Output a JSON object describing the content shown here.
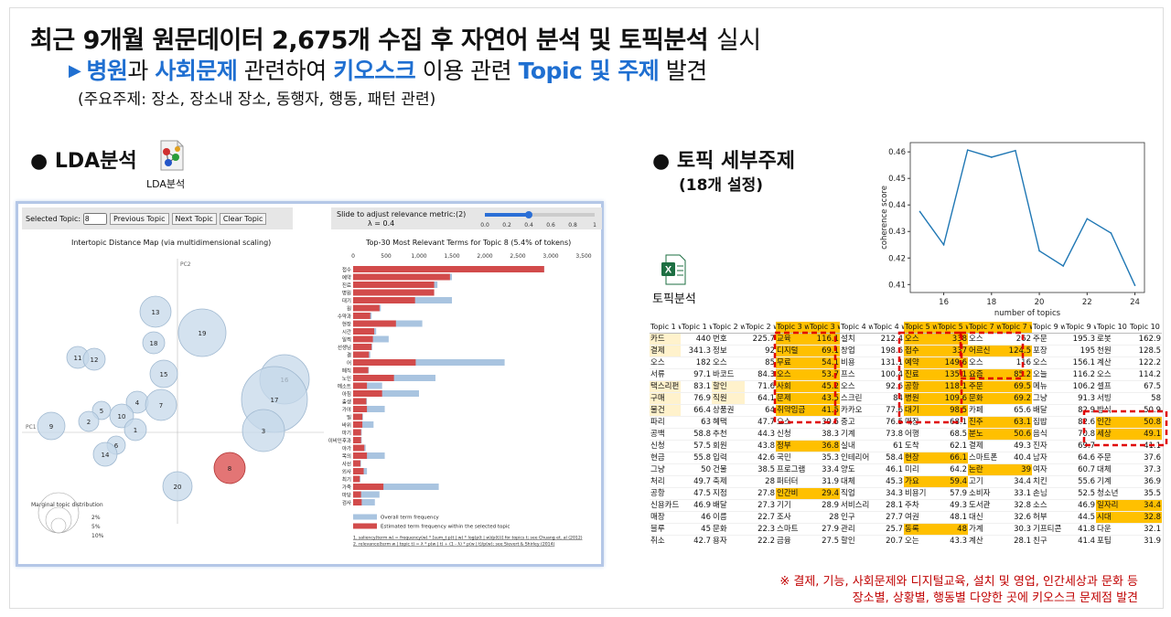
{
  "headline": {
    "main": "최근 9개월 원문데이터 2,675개 수집 후 자연어 분석 및 토픽분석",
    "tail": "실시"
  },
  "subline": {
    "bullet": "▶",
    "part1": "병원",
    "part2": "과",
    "part3": "사회문제",
    "part4": "관련하여",
    "part5": "키오스크",
    "part6": "이용 관련",
    "part7": "Topic 및 주제",
    "part8": "발견"
  },
  "subline2": "(주요주제: 장소, 장소내 장소, 동행자, 행동, 패턴 관련)",
  "lda": {
    "title": "● LDA분석",
    "icon_label": "LDA분석",
    "selected_topic_label": "Selected Topic:",
    "selected_topic_value": "8",
    "prev": "Previous Topic",
    "next": "Next Topic",
    "clear": "Clear Topic",
    "slider_label": "Slide to adjust relevance metric:(2)",
    "lambda": "λ = 0.4",
    "slider_ticks": [
      "0.0",
      "0.2",
      "0.4",
      "0.6",
      "0.8",
      "1"
    ],
    "slider_value": 0.4,
    "map_title": "Intertopic Distance Map (via multidimensional scaling)",
    "pc1": "PC1",
    "pc2": "PC2",
    "marginal_title": "Marginal topic distribution",
    "marginal_ticks": [
      "2%",
      "5%",
      "10%"
    ],
    "bar_title": "Top-30 Most Relevant Terms for Topic 8 (5.4% of tokens)",
    "bar_axis": [
      "0",
      "500",
      "1,000",
      "1,500",
      "2,000",
      "2,500",
      "3,000",
      "3,500"
    ],
    "legend_overall": "Overall term frequency",
    "legend_estimated": "Estimated term frequency within the selected topic",
    "footnote1": "1. saliency(term w) = frequency(w) * [sum_t p(t | w) * log(p(t | w)/p(t))] for topics t; see Chuang et. al (2012)",
    "footnote2": "2. relevance(term w | topic t) = λ * p(w | t) + (1 - λ) * p(w | t)/p(w); see Sievert & Shirley (2014)",
    "topics": [
      {
        "id": "13",
        "x": 146,
        "y": 106,
        "r": 17
      },
      {
        "id": "19",
        "x": 197,
        "y": 129,
        "r": 26
      },
      {
        "id": "18",
        "x": 144,
        "y": 140,
        "r": 12
      },
      {
        "id": "11",
        "x": 61,
        "y": 156,
        "r": 12
      },
      {
        "id": "12",
        "x": 79,
        "y": 158,
        "r": 12
      },
      {
        "id": "15",
        "x": 155,
        "y": 174,
        "r": 15
      },
      {
        "id": "16",
        "x": 287,
        "y": 180,
        "r": 27
      },
      {
        "id": "17",
        "x": 276,
        "y": 202,
        "r": 36
      },
      {
        "id": "4",
        "x": 126,
        "y": 205,
        "r": 12
      },
      {
        "id": "7",
        "x": 152,
        "y": 208,
        "r": 17
      },
      {
        "id": "5",
        "x": 87,
        "y": 214,
        "r": 10
      },
      {
        "id": "2",
        "x": 73,
        "y": 226,
        "r": 11
      },
      {
        "id": "10",
        "x": 109,
        "y": 220,
        "r": 13
      },
      {
        "id": "9",
        "x": 32,
        "y": 231,
        "r": 15
      },
      {
        "id": "1",
        "x": 124,
        "y": 235,
        "r": 12
      },
      {
        "id": "3",
        "x": 264,
        "y": 236,
        "r": 23
      },
      {
        "id": "6",
        "x": 103,
        "y": 252,
        "r": 10
      },
      {
        "id": "14",
        "x": 91,
        "y": 262,
        "r": 13
      },
      {
        "id": "8",
        "x": 227,
        "y": 277,
        "r": 17,
        "selected": true
      },
      {
        "id": "20",
        "x": 170,
        "y": 297,
        "r": 16
      }
    ],
    "terms": [
      {
        "t": "접수",
        "est": 2900,
        "all": 2900
      },
      {
        "t": "예약",
        "est": 1470,
        "all": 1500
      },
      {
        "t": "진료",
        "est": 1230,
        "all": 1280
      },
      {
        "t": "병원",
        "est": 1230,
        "all": 1230
      },
      {
        "t": "대기",
        "est": 940,
        "all": 1500
      },
      {
        "t": "원",
        "est": 400,
        "all": 420
      },
      {
        "t": "수약과",
        "est": 260,
        "all": 280
      },
      {
        "t": "현장",
        "est": 650,
        "all": 1050
      },
      {
        "t": "시간",
        "est": 320,
        "all": 350
      },
      {
        "t": "일찍",
        "est": 300,
        "all": 540
      },
      {
        "t": "선생님",
        "est": 280,
        "all": 290
      },
      {
        "t": "결",
        "est": 240,
        "all": 260
      },
      {
        "t": "어",
        "est": 950,
        "all": 2300
      },
      {
        "t": "폐직",
        "est": 230,
        "all": 240
      },
      {
        "t": "노인",
        "est": 620,
        "all": 1250
      },
      {
        "t": "메소트",
        "est": 210,
        "all": 440
      },
      {
        "t": "아침",
        "est": 440,
        "all": 1000
      },
      {
        "t": "출생",
        "est": 200,
        "all": 210
      },
      {
        "t": "가야",
        "est": 210,
        "all": 480
      },
      {
        "t": "밀",
        "est": 140,
        "all": 150
      },
      {
        "t": "바위",
        "est": 140,
        "all": 310
      },
      {
        "t": "마기",
        "est": 120,
        "all": 130
      },
      {
        "t": "이비인후과",
        "est": 120,
        "all": 130
      },
      {
        "t": "야가",
        "est": 170,
        "all": 190
      },
      {
        "t": "목의",
        "est": 210,
        "all": 480
      },
      {
        "t": "사선",
        "est": 110,
        "all": 120
      },
      {
        "t": "외사",
        "est": 160,
        "all": 210
      },
      {
        "t": "최기",
        "est": 100,
        "all": 110
      },
      {
        "t": "가죽",
        "est": 460,
        "all": 1300
      },
      {
        "t": "마당",
        "est": 120,
        "all": 400
      },
      {
        "t": "검사",
        "est": 130,
        "all": 330
      }
    ]
  },
  "topic_detail": {
    "title": "● 토픽 세부주제",
    "subtitle": "(18개 설정)",
    "icon_label": "토픽분석"
  },
  "chart_data": {
    "type": "line",
    "title": "",
    "xlabel": "number of topics",
    "ylabel": "coherence score",
    "x": [
      15,
      16,
      17,
      18,
      19,
      20,
      21,
      22,
      23,
      24
    ],
    "y": [
      0.4375,
      0.425,
      0.4607,
      0.458,
      0.4605,
      0.4227,
      0.417,
      0.4348,
      0.4294,
      0.4097
    ],
    "xticks": [
      16,
      18,
      20,
      22,
      24
    ],
    "yticks": [
      0.41,
      0.42,
      0.43,
      0.44,
      0.45,
      0.46
    ],
    "xlim": [
      14.6,
      24.4
    ],
    "ylim": [
      0.407,
      0.4635
    ]
  },
  "table": {
    "headers": [
      "Topic 1 wi",
      "Topic 1 wi",
      "Topic 2 wi",
      "Topic 2 wi",
      "Topic 3 wi",
      "Topic 3 wi",
      "Topic 4 wi",
      "Topic 4 wi",
      "Topic 5 wi",
      "Topic 5 wi",
      "Topic 7 wi",
      "Topic 7 wi",
      "Topic 9 wi",
      "Topic 9 wi",
      "Topic 10 wi",
      "Topic 10 wi"
    ],
    "rows": [
      [
        "카드",
        "440",
        "번호",
        "225.7",
        "교육",
        "116.1",
        "설치",
        "212.4",
        "오스",
        "338",
        "오스",
        "262",
        "주문",
        "195.3",
        "로봇",
        "162.9"
      ],
      [
        "결제",
        "341.3",
        "정보",
        "92",
        "디지털",
        "69.1",
        "창업",
        "198.6",
        "접수",
        "337",
        "어르신",
        "124.5",
        "포장",
        "195",
        "천원",
        "128.5"
      ],
      [
        "오스",
        "182",
        "오스",
        "85",
        "무료",
        "54.1",
        "비용",
        "131.1",
        "예약",
        "149.6",
        "오스",
        "116",
        "오스",
        "156.1",
        "계산",
        "122.2"
      ],
      [
        "서류",
        "97.1",
        "바코드",
        "84.3",
        "오스",
        "53.7",
        "프스",
        "100.4",
        "진료",
        "135.1",
        "요즘",
        "85.2",
        "오늘",
        "116.2",
        "오스",
        "114.2"
      ],
      [
        "택스리펀",
        "83.1",
        "할인",
        "71.6",
        "사회",
        "45.2",
        "오스",
        "92.6",
        "공항",
        "118.1",
        "주문",
        "69.5",
        "메뉴",
        "106.2",
        "셀프",
        "67.5"
      ],
      [
        "구매",
        "76.9",
        "직원",
        "64.1",
        "문제",
        "43.5",
        "스크린",
        "84",
        "병원",
        "109.6",
        "문화",
        "69.2",
        "그냥",
        "91.3",
        "서빙",
        "58"
      ],
      [
        "물건",
        "66.4",
        "상품권",
        "64",
        "취약임금",
        "41.5",
        "카카오",
        "77.6",
        "대기",
        "98.5",
        "카페",
        "65.6",
        "배달",
        "82.9",
        "방식",
        "50.9"
      ],
      [
        "파리",
        "63",
        "혜택",
        "47.7",
        "오스",
        "39.5",
        "중고",
        "76.5",
        "매장",
        "68.1",
        "진주",
        "63.1",
        "집밥",
        "82.6",
        "인간",
        "50.8"
      ],
      [
        "공백",
        "58.8",
        "추천",
        "44.3",
        "신청",
        "38.3",
        "기계",
        "73.8",
        "어행",
        "68.5",
        "분노",
        "50.6",
        "음식",
        "70.8",
        "세상",
        "49.1"
      ],
      [
        "신청",
        "57.5",
        "회원",
        "43.8",
        "정부",
        "36.8",
        "실내",
        "61",
        "도착",
        "62.1",
        "결제",
        "49.3",
        "진자",
        "69.7",
        "",
        "41.1"
      ],
      [
        "현금",
        "55.8",
        "입력",
        "42.6",
        "국민",
        "35.3",
        "인테리어",
        "58.4",
        "현장",
        "66.1",
        "스마트폰",
        "40.4",
        "남자",
        "64.6",
        "주문",
        "37.6"
      ],
      [
        "그냥",
        "50",
        "건물",
        "38.5",
        "프로그램",
        "33.4",
        "양도",
        "46.1",
        "미리",
        "64.2",
        "논란",
        "39",
        "여자",
        "60.7",
        "대체",
        "37.3"
      ],
      [
        "처리",
        "49.7",
        "축제",
        "28",
        "퍼터터",
        "31.9",
        "대체",
        "45.3",
        "가요",
        "59.4",
        "고기",
        "34.4",
        "치킨",
        "55.6",
        "기계",
        "36.9"
      ],
      [
        "공항",
        "47.5",
        "지점",
        "27.8",
        "인간비",
        "29.4",
        "직업",
        "34.3",
        "비용기",
        "57.9",
        "소비자",
        "33.1",
        "손님",
        "52.5",
        "청소년",
        "35.5"
      ],
      [
        "신용카드",
        "46.9",
        "배달",
        "27.3",
        "기기",
        "28.9",
        "서비스리",
        "28.1",
        "주차",
        "49.3",
        "도서관",
        "32.8",
        "소스",
        "46.9",
        "일자리",
        "34.4"
      ],
      [
        "매장",
        "46",
        "이름",
        "22.7",
        "조사",
        "28",
        "인구",
        "27.7",
        "여권",
        "48.1",
        "대신",
        "32.6",
        "허부",
        "44.5",
        "시대",
        "32.8"
      ],
      [
        "블루",
        "45",
        "문화",
        "22.3",
        "스마트",
        "27.9",
        "관리",
        "25.7",
        "동록",
        "48",
        "가계",
        "30.3",
        "기프티콘",
        "41.8",
        "다운",
        "32.1"
      ],
      [
        "취소",
        "42.7",
        "용자",
        "22.2",
        "금융",
        "27.5",
        "할인",
        "20.7",
        "오는",
        "43.3",
        "계산",
        "28.1",
        "친구",
        "41.4",
        "포팁",
        "31.9"
      ]
    ]
  },
  "notes": {
    "line1": "※ 결제, 기능, 사회문제와 디지털교육, 설치 및 영업, 인간세상과 문화 등",
    "line2": "장소별, 상황별, 행동별 다양한 곳에 키오스크 문제점 발견"
  }
}
